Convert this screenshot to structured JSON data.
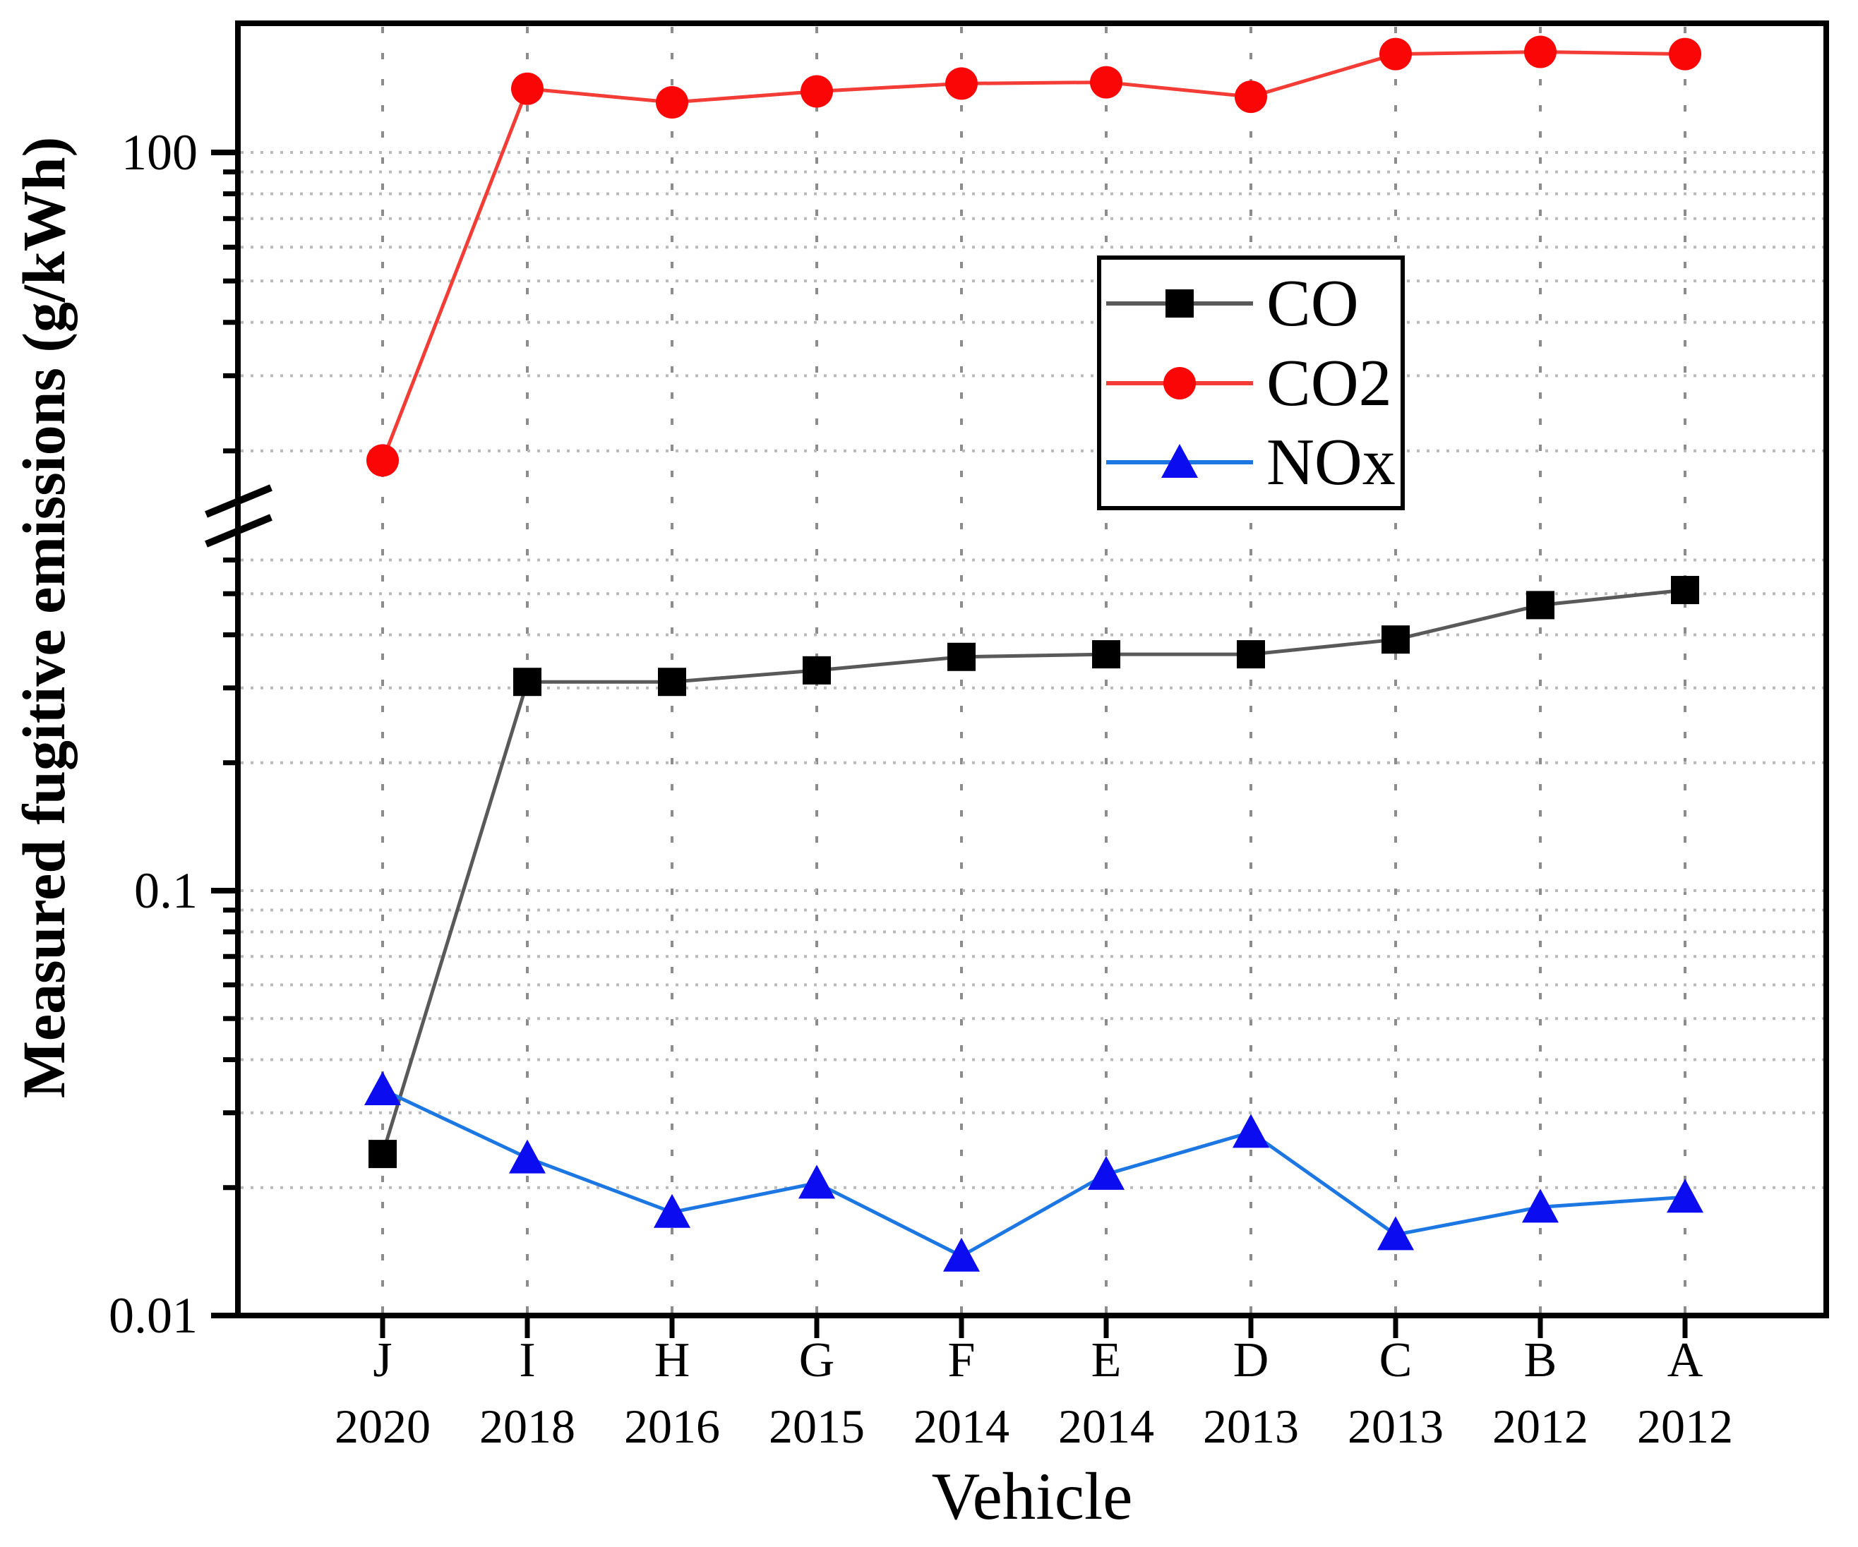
{
  "chart_data": {
    "type": "line",
    "title": "",
    "xlabel": "Vehicle",
    "ylabel": "Measured fugitive emissions (g/kWh)",
    "background_color": "#ffffff",
    "grid": {
      "horizontal_color": "#b9b9b9",
      "vertical_color": "#8c8c8c",
      "style": "dotted"
    },
    "y_scale": "log10-broken-axis",
    "y_break": {
      "lower_segment_range": [
        0.01,
        0.7
      ],
      "upper_segment_range": [
        16,
        200
      ]
    },
    "categories": [
      "J",
      "I",
      "H",
      "G",
      "F",
      "E",
      "D",
      "C",
      "B",
      "A"
    ],
    "category_years": [
      "2020",
      "2018",
      "2016",
      "2015",
      "2014",
      "2014",
      "2013",
      "2013",
      "2012",
      "2012"
    ],
    "y_axis": {
      "major_ticks": [
        {
          "value": 100,
          "label": "100"
        },
        {
          "value": 0.1,
          "label": "0.1"
        },
        {
          "value": 0.01,
          "label": "0.01"
        }
      ],
      "minor_ticks_upper": [
        90,
        80,
        70,
        60,
        50,
        40,
        30,
        20
      ],
      "minor_ticks_lower": [
        0.6,
        0.5,
        0.4,
        0.3,
        0.2,
        0.09,
        0.08,
        0.07,
        0.06,
        0.05,
        0.04,
        0.03,
        0.02
      ]
    },
    "series": [
      {
        "name": "CO",
        "marker": "square",
        "marker_color": "#000000",
        "line_color": "#595959",
        "values": [
          0.024,
          0.31,
          0.31,
          0.33,
          0.355,
          0.36,
          0.36,
          0.39,
          0.47,
          0.51
        ]
      },
      {
        "name": "CO2",
        "marker": "circle",
        "marker_color": "#fb0606",
        "line_color": "#f23c35",
        "values": [
          19,
          141,
          131,
          139,
          145,
          146,
          135,
          170,
          172,
          170
        ]
      },
      {
        "name": "NOx",
        "marker": "triangle",
        "marker_color": "#0c0cf0",
        "line_color": "#1c77e2",
        "values": [
          0.034,
          0.0235,
          0.0175,
          0.0205,
          0.0138,
          0.0215,
          0.027,
          0.0155,
          0.018,
          0.019
        ]
      }
    ],
    "legend": {
      "position": "upper-right-of-center",
      "entries": [
        "CO",
        "CO2",
        "NOx"
      ]
    }
  }
}
